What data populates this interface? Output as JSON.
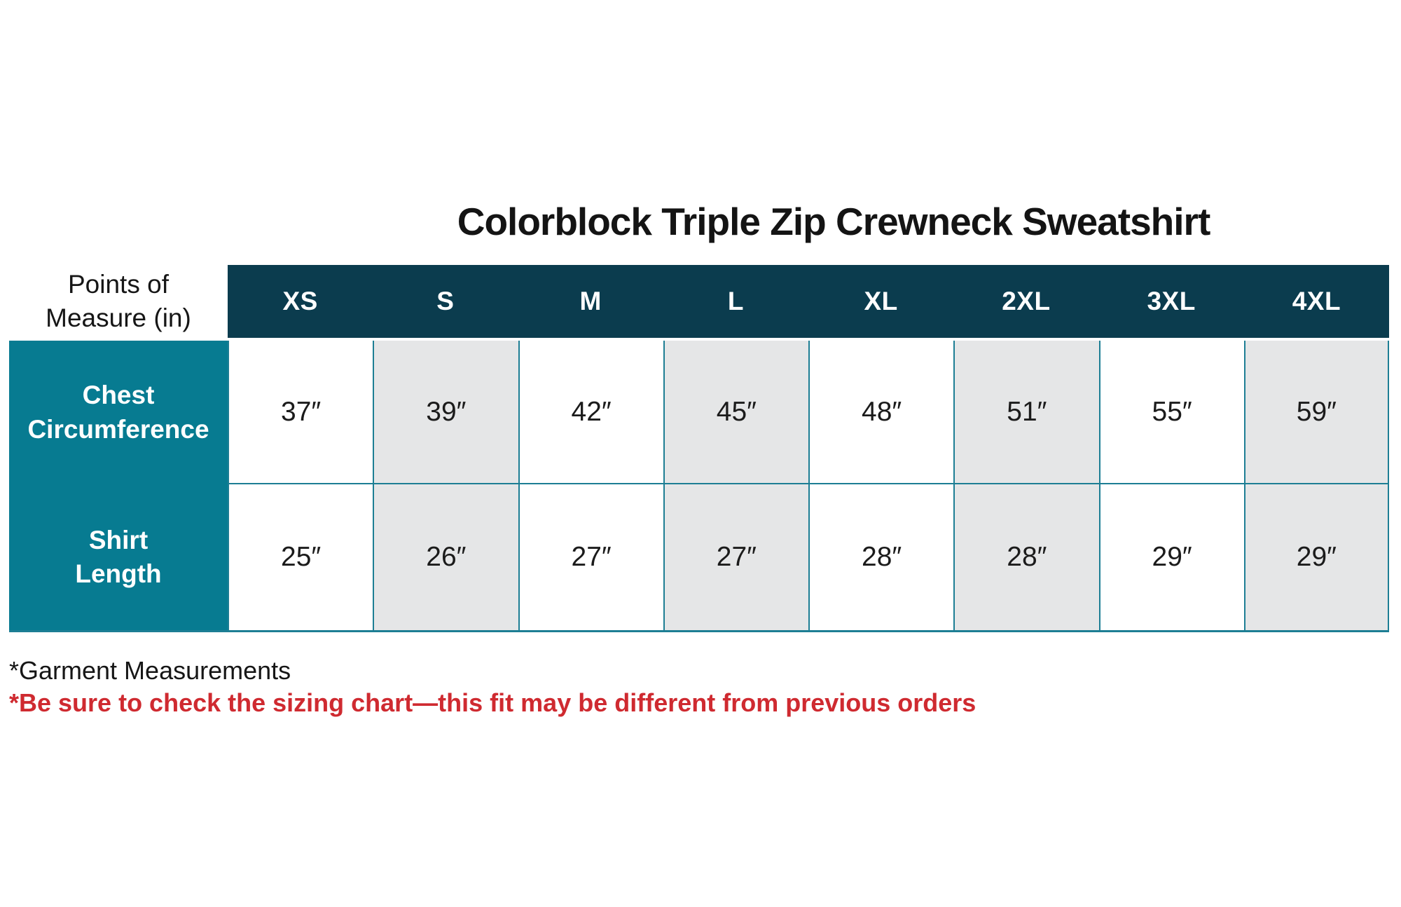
{
  "title": "Colorblock Triple Zip Crewneck Sweatshirt",
  "chart_data": {
    "type": "table",
    "title": "Colorblock Triple Zip Crewneck Sweatshirt",
    "corner_header": [
      "Points of",
      "Measure (in)"
    ],
    "columns": [
      "XS",
      "S",
      "M",
      "L",
      "XL",
      "2XL",
      "3XL",
      "4XL"
    ],
    "rows": [
      {
        "label": [
          "Chest",
          "Circumference"
        ],
        "values": [
          "37″",
          "39″",
          "42″",
          "45″",
          "48″",
          "51″",
          "55″",
          "59″"
        ],
        "values_numeric_inches": [
          37,
          39,
          42,
          45,
          48,
          51,
          55,
          59
        ]
      },
      {
        "label": [
          "Shirt",
          "Length"
        ],
        "values": [
          "25″",
          "26″",
          "27″",
          "27″",
          "28″",
          "28″",
          "29″",
          "29″"
        ],
        "values_numeric_inches": [
          25,
          26,
          27,
          27,
          28,
          28,
          29,
          29
        ]
      }
    ]
  },
  "notes": {
    "garment": "*Garment Measurements",
    "warning": "*Be sure to check the sizing chart—this fit may be different from previous orders"
  },
  "colors": {
    "header_bg": "#0b3c4e",
    "label_bg": "#077b91",
    "stripe_bg": "#e5e6e7",
    "border": "#1d7e94",
    "warning_red": "#cf2a30",
    "ink": "#161616"
  }
}
